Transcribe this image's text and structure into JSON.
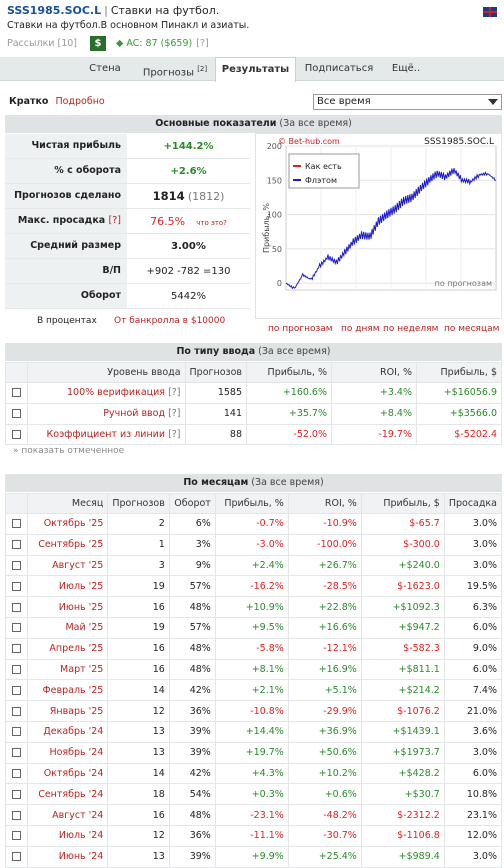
{
  "header": {
    "name": "SSS1985.SOC.L",
    "separator": "|",
    "tagline": "Ставки на футбол.",
    "desc": "Ставки на футбол.В основном Пинакл и азиаты.",
    "mailing": "Рассылки [10]",
    "dollar": "$",
    "ac": "AC: 87 ($659)",
    "ac_help": "[?]",
    "flag": "uk-flag-icon"
  },
  "tabs": [
    {
      "label": "Стена"
    },
    {
      "label": "Прогнозы",
      "sup": "[2]"
    },
    {
      "label": "Результаты"
    },
    {
      "label": "Подписаться"
    },
    {
      "label": "Ещё.."
    }
  ],
  "view": {
    "short": "Кратко",
    "detailed": "Подробно",
    "period": "Все время"
  },
  "main": {
    "title": "Основные показатели",
    "sub": "(За все время)",
    "stats": [
      {
        "k": "Чистая прибыль",
        "v": "+144.2%"
      },
      {
        "k": "% с оборота",
        "v": "+2.6%"
      },
      {
        "k": "Прогнозов сделано",
        "v": "1814",
        "v2": "(1812)"
      },
      {
        "k": "Макс. просадка",
        "help": "[?]",
        "v": "76.5%",
        "note": "что это?"
      },
      {
        "k": "Средний размер",
        "v": "3.00%"
      },
      {
        "k": "В/П",
        "v": "+902 -782 =130"
      },
      {
        "k": "Оборот",
        "v": "5442%"
      }
    ],
    "pct_label": "В процентах",
    "bank_link": "От банкролла в $10000"
  },
  "chart_data": {
    "type": "line",
    "title": "SSS1985.SOC.L",
    "credit": "© Bet-hub.com",
    "ylabel": "Прибыль, %",
    "xlabel": "по прогнозам",
    "ylim": [
      -10,
      200
    ],
    "yticks": [
      0,
      50,
      100,
      150,
      200
    ],
    "grid": true,
    "legend_position": "top-left",
    "series": [
      {
        "name": "Как есть",
        "color": "#e02020",
        "values": []
      },
      {
        "name": "Флэтом",
        "color": "#1c1ccc",
        "values": [
          0,
          -8,
          12,
          5,
          25,
          38,
          30,
          45,
          60,
          70,
          68,
          90,
          100,
          108,
          120,
          125,
          138,
          150,
          160,
          155,
          165,
          150,
          148,
          158,
          160,
          150
        ]
      }
    ]
  },
  "chart_links": [
    "по прогнозам",
    "по дням",
    "по неделям",
    "по месяцам"
  ],
  "types": {
    "title": "По типу ввода",
    "sub": "(За все время)",
    "headers": [
      "Уровень ввода",
      "Прогнозов",
      "Прибыль, %",
      "ROI, %",
      "Прибыль, $"
    ],
    "rows": [
      {
        "name": "100% верификация",
        "help": "[?]",
        "n": "1585",
        "p": "+160.6%",
        "roi": "+3.4%",
        "usd": "+$16056.9"
      },
      {
        "name": "Ручной ввод",
        "help": "[?]",
        "n": "141",
        "p": "+35.7%",
        "roi": "+8.4%",
        "usd": "+$3566.0"
      },
      {
        "name": "Коэффициент из линии",
        "help": "[?]",
        "n": "88",
        "p": "-52.0%",
        "roi": "-19.7%",
        "usd": "$-5202.4"
      }
    ],
    "show_selected": "» показать отмеченное"
  },
  "months": {
    "title": "По месяцам",
    "sub": "(За все время)",
    "headers": [
      "Месяц",
      "Прогнозов",
      "Оборот",
      "Прибыль, %",
      "ROI, %",
      "Прибыль, $",
      "Просадка"
    ],
    "rows": [
      {
        "m": "Октябрь '25",
        "n": "2",
        "o": "6%",
        "p": "-0.7%",
        "roi": "-10.9%",
        "usd": "$-65.7",
        "d": "3.0%"
      },
      {
        "m": "Сентябрь '25",
        "n": "1",
        "o": "3%",
        "p": "-3.0%",
        "roi": "-100.0%",
        "usd": "$-300.0",
        "d": "3.0%"
      },
      {
        "m": "Август '25",
        "n": "3",
        "o": "9%",
        "p": "+2.4%",
        "roi": "+26.7%",
        "usd": "+$240.0",
        "d": "3.0%"
      },
      {
        "m": "Июль '25",
        "n": "19",
        "o": "57%",
        "p": "-16.2%",
        "roi": "-28.5%",
        "usd": "$-1623.0",
        "d": "19.5%"
      },
      {
        "m": "Июнь '25",
        "n": "16",
        "o": "48%",
        "p": "+10.9%",
        "roi": "+22.8%",
        "usd": "+$1092.3",
        "d": "6.3%"
      },
      {
        "m": "Май '25",
        "n": "19",
        "o": "57%",
        "p": "+9.5%",
        "roi": "+16.6%",
        "usd": "+$947.2",
        "d": "6.0%"
      },
      {
        "m": "Апрель '25",
        "n": "16",
        "o": "48%",
        "p": "-5.8%",
        "roi": "-12.1%",
        "usd": "$-582.3",
        "d": "9.0%"
      },
      {
        "m": "Март '25",
        "n": "16",
        "o": "48%",
        "p": "+8.1%",
        "roi": "+16.9%",
        "usd": "+$811.1",
        "d": "6.0%"
      },
      {
        "m": "Февраль '25",
        "n": "14",
        "o": "42%",
        "p": "+2.1%",
        "roi": "+5.1%",
        "usd": "+$214.2",
        "d": "7.4%"
      },
      {
        "m": "Январь '25",
        "n": "12",
        "o": "36%",
        "p": "-10.8%",
        "roi": "-29.9%",
        "usd": "$-1076.2",
        "d": "21.0%"
      },
      {
        "m": "Декабрь '24",
        "n": "13",
        "o": "39%",
        "p": "+14.4%",
        "roi": "+36.9%",
        "usd": "+$1439.1",
        "d": "3.6%"
      },
      {
        "m": "Ноябрь '24",
        "n": "13",
        "o": "39%",
        "p": "+19.7%",
        "roi": "+50.6%",
        "usd": "+$1973.7",
        "d": "3.0%"
      },
      {
        "m": "Октябрь '24",
        "n": "14",
        "o": "42%",
        "p": "+4.3%",
        "roi": "+10.2%",
        "usd": "+$428.2",
        "d": "6.0%"
      },
      {
        "m": "Сентябрь '24",
        "n": "18",
        "o": "54%",
        "p": "+0.3%",
        "roi": "+0.6%",
        "usd": "+$30.7",
        "d": "10.8%"
      },
      {
        "m": "Август '24",
        "n": "16",
        "o": "48%",
        "p": "-23.1%",
        "roi": "-48.2%",
        "usd": "$-2312.2",
        "d": "23.1%"
      },
      {
        "m": "Июль '24",
        "n": "12",
        "o": "36%",
        "p": "-11.1%",
        "roi": "-30.7%",
        "usd": "$-1106.8",
        "d": "12.0%"
      },
      {
        "m": "Июнь '24",
        "n": "13",
        "o": "39%",
        "p": "+9.9%",
        "roi": "+25.4%",
        "usd": "+$989.4",
        "d": "3.0%"
      }
    ]
  }
}
